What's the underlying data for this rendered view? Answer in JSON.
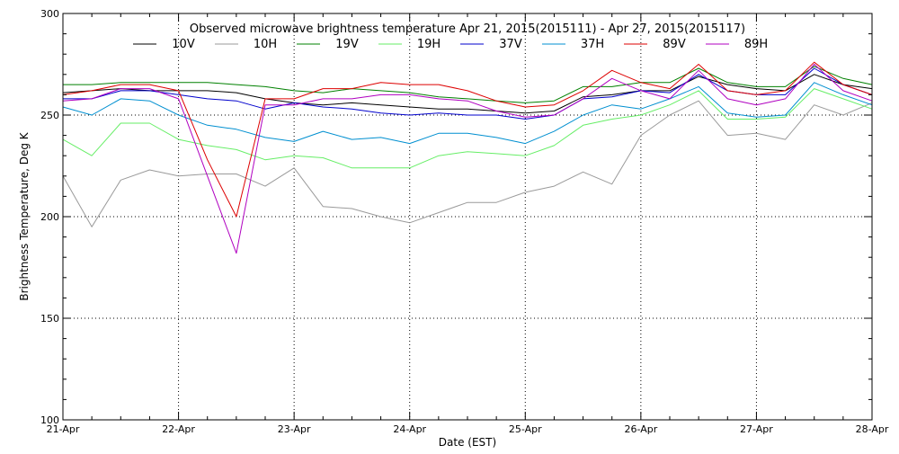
{
  "chart_data": {
    "type": "line",
    "title": "Observed microwave brightness temperature Apr 21, 2015(2015111) - Apr 27, 2015(2015117)",
    "xlabel": "Date (EST)",
    "ylabel": "Brightness Temperature, Deg K",
    "xlim": [
      "2015-04-21",
      "2015-04-28"
    ],
    "ylim": [
      100,
      300
    ],
    "x_ticks": [
      "21-Apr",
      "22-Apr",
      "23-Apr",
      "24-Apr",
      "25-Apr",
      "26-Apr",
      "27-Apr",
      "28-Apr"
    ],
    "y_ticks": [
      100,
      150,
      200,
      250,
      300
    ],
    "grid": "dotted",
    "legend_position": "top",
    "x_day_offsets": [
      0,
      0.25,
      0.5,
      0.75,
      1,
      1.25,
      1.5,
      1.75,
      2,
      2.25,
      2.5,
      2.75,
      3,
      3.25,
      3.5,
      3.75,
      4,
      4.25,
      4.5,
      4.75,
      5,
      5.25,
      5.5,
      5.75,
      6,
      6.25,
      6.5,
      6.75,
      7
    ],
    "series": [
      {
        "name": "10V",
        "color": "#000000",
        "values": [
          261,
          262,
          263,
          262,
          262,
          262,
          261,
          258,
          256,
          255,
          256,
          255,
          254,
          253,
          253,
          252,
          251,
          252,
          259,
          260,
          262,
          262,
          269,
          265,
          263,
          262,
          270,
          265,
          263
        ]
      },
      {
        "name": "10H",
        "color": "#9a9a9a",
        "values": [
          220,
          195,
          218,
          223,
          220,
          221,
          221,
          215,
          224,
          205,
          204,
          200,
          197,
          202,
          207,
          207,
          212,
          215,
          222,
          216,
          240,
          250,
          257,
          240,
          241,
          238,
          255,
          250,
          256
        ]
      },
      {
        "name": "19V",
        "color": "#008000",
        "values": [
          265,
          265,
          266,
          266,
          266,
          266,
          265,
          264,
          262,
          261,
          263,
          262,
          261,
          259,
          258,
          257,
          256,
          257,
          264,
          264,
          266,
          266,
          273,
          266,
          264,
          264,
          274,
          268,
          265
        ]
      },
      {
        "name": "19H",
        "color": "#66ee66",
        "values": [
          238,
          230,
          246,
          246,
          238,
          235,
          233,
          228,
          230,
          229,
          224,
          224,
          224,
          230,
          232,
          231,
          230,
          235,
          245,
          248,
          250,
          255,
          262,
          248,
          248,
          249,
          263,
          258,
          253
        ]
      },
      {
        "name": "37V",
        "color": "#0000cc",
        "values": [
          258,
          258,
          262,
          262,
          260,
          258,
          257,
          253,
          256,
          254,
          253,
          251,
          250,
          251,
          250,
          250,
          248,
          250,
          258,
          259,
          262,
          261,
          270,
          262,
          260,
          260,
          273,
          265,
          260
        ]
      },
      {
        "name": "37H",
        "color": "#008fd0",
        "values": [
          254,
          250,
          258,
          257,
          250,
          245,
          243,
          239,
          237,
          242,
          238,
          239,
          236,
          241,
          241,
          239,
          236,
          242,
          250,
          255,
          253,
          258,
          264,
          251,
          249,
          250,
          266,
          260,
          255
        ]
      },
      {
        "name": "89V",
        "color": "#dd0000",
        "values": [
          260,
          262,
          265,
          265,
          262,
          228,
          200,
          258,
          258,
          263,
          263,
          266,
          265,
          265,
          262,
          257,
          254,
          255,
          262,
          272,
          266,
          263,
          275,
          262,
          260,
          262,
          276,
          265,
          260
        ]
      },
      {
        "name": "89H",
        "color": "#b000c0",
        "values": [
          257,
          258,
          263,
          263,
          258,
          220,
          182,
          255,
          255,
          258,
          258,
          260,
          260,
          258,
          257,
          252,
          249,
          250,
          258,
          268,
          262,
          258,
          272,
          258,
          255,
          258,
          275,
          262,
          257
        ]
      }
    ]
  }
}
